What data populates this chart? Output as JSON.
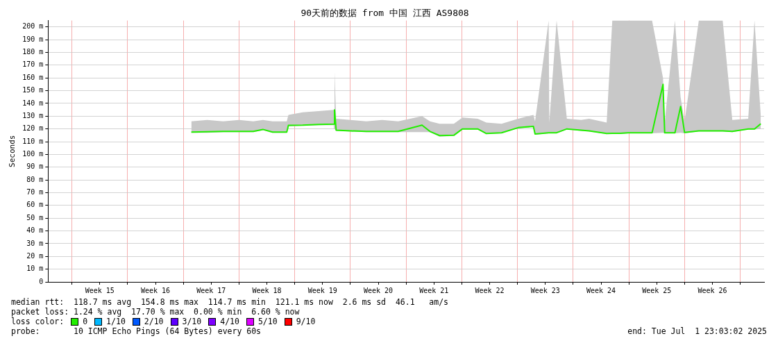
{
  "chart_data": {
    "type": "line",
    "title": "90天前的数据 from 中国 江西 AS9808",
    "ylabel": "Seconds",
    "xlim": [
      "2025-04-04",
      "2025-07-03"
    ],
    "xticks": [
      {
        "value": "2025-04-07",
        "label": null
      },
      {
        "value": "2025-04-10T12:00",
        "label": "Week 15"
      },
      {
        "value": "2025-04-14",
        "label": null
      },
      {
        "value": "2025-04-17T12:00",
        "label": "Week 16"
      },
      {
        "value": "2025-04-21",
        "label": null
      },
      {
        "value": "2025-04-24T12:00",
        "label": "Week 17"
      },
      {
        "value": "2025-04-28",
        "label": null
      },
      {
        "value": "2025-05-01T12:00",
        "label": "Week 18"
      },
      {
        "value": "2025-05-05",
        "label": null
      },
      {
        "value": "2025-05-08T12:00",
        "label": "Week 19"
      },
      {
        "value": "2025-05-12",
        "label": null
      },
      {
        "value": "2025-05-15T12:00",
        "label": "Week 20"
      },
      {
        "value": "2025-05-19",
        "label": null
      },
      {
        "value": "2025-05-22T12:00",
        "label": "Week 21"
      },
      {
        "value": "2025-05-26",
        "label": null
      },
      {
        "value": "2025-05-29T12:00",
        "label": "Week 22"
      },
      {
        "value": "2025-06-02",
        "label": null
      },
      {
        "value": "2025-06-05T12:00",
        "label": "Week 23"
      },
      {
        "value": "2025-06-09",
        "label": null
      },
      {
        "value": "2025-06-12T12:00",
        "label": "Week 24"
      },
      {
        "value": "2025-06-16",
        "label": null
      },
      {
        "value": "2025-06-19T12:00",
        "label": "Week 25"
      },
      {
        "value": "2025-06-23",
        "label": null
      },
      {
        "value": "2025-06-26T12:00",
        "label": "Week 26"
      },
      {
        "value": "2025-06-30",
        "label": null
      }
    ],
    "ylim": [
      0,
      205
    ],
    "yticks": [
      0,
      {
        "value": 10,
        "label": "10 m"
      },
      {
        "value": 20,
        "label": "20 m"
      },
      {
        "value": 30,
        "label": "30 m"
      },
      {
        "value": 40,
        "label": "40 m"
      },
      {
        "value": 50,
        "label": "50 m"
      },
      {
        "value": 60,
        "label": "60 m"
      },
      {
        "value": 70,
        "label": "70 m"
      },
      {
        "value": 80,
        "label": "80 m"
      },
      {
        "value": 90,
        "label": "90 m"
      },
      {
        "value": 100,
        "label": "100 m"
      },
      {
        "value": 110,
        "label": "110 m"
      },
      {
        "value": 120,
        "label": "120 m"
      },
      {
        "value": 130,
        "label": "130 m"
      },
      {
        "value": 140,
        "label": "140 m"
      },
      {
        "value": 150,
        "label": "150 m"
      },
      {
        "value": 160,
        "label": "160 m"
      },
      {
        "value": 170,
        "label": "170 m"
      },
      {
        "value": 180,
        "label": "180 m"
      },
      {
        "value": 190,
        "label": "190 m"
      },
      {
        "value": 200,
        "label": "200 m"
      }
    ],
    "grid": true,
    "legend": "bottom left",
    "legend_title": "loss color:",
    "marker": "none",
    "line_style": "solid",
    "series": [
      {
        "name": "0",
        "color": "#22ee00",
        "x": [
          "2025-04-22",
          "2025-04-24",
          "2025-04-26",
          "2025-04-28",
          "2025-04-29T19:00",
          "2025-05-01",
          "2025-05-02T05:00",
          "2025-05-04",
          "2025-05-04T05:00",
          "2025-05-06",
          "2025-05-08",
          "2025-05-09T22:00",
          "2025-05-10",
          "2025-05-10T05:00",
          "2025-05-12",
          "2025-05-14",
          "2025-05-16",
          "2025-05-18",
          "2025-05-21",
          "2025-05-22",
          "2025-05-23T05:00",
          "2025-05-25",
          "2025-05-26T02:00",
          "2025-05-28",
          "2025-05-29T02:00",
          "2025-05-31",
          "2025-06-02T02:00",
          "2025-06-04",
          "2025-06-04T05:00",
          "2025-06-05T22:00",
          "2025-06-06",
          "2025-06-06T22:00",
          "2025-06-08T05:00",
          "2025-06-10",
          "2025-06-11",
          "2025-06-13T05:00",
          "2025-06-13T22:00",
          "2025-06-14T22:00",
          "2025-06-15T22:00",
          "2025-06-17",
          "2025-06-17T22:00",
          "2025-06-18T22:00",
          "2025-06-20T07:00",
          "2025-06-20T12:00",
          "2025-06-21T19:00",
          "2025-06-22T12:00",
          "2025-06-23",
          "2025-06-24T19:00",
          "2025-06-25T19:00",
          "2025-06-26T19:00",
          "2025-06-27T19:00",
          "2025-06-29",
          "2025-07-01",
          "2025-07-01T19:00",
          "2025-07-02T14:00"
        ],
        "values": [
          117.5,
          117.8,
          118,
          118,
          118,
          119.6,
          117.5,
          117.5,
          122.8,
          123,
          123.5,
          123.8,
          135,
          119,
          118.5,
          118,
          118,
          118,
          123,
          118,
          114.8,
          115,
          120,
          120,
          116.4,
          117,
          121,
          122,
          116,
          117,
          117,
          117,
          120,
          119,
          118.5,
          116.4,
          116.5,
          116.5,
          117,
          117,
          117,
          117,
          155,
          117,
          117,
          137.6,
          117.2,
          118.5,
          118.5,
          118.5,
          118.5,
          118,
          120,
          120,
          124
        ],
        "lower": [
          117,
          117,
          117.5,
          117.5,
          117.5,
          119,
          117,
          117,
          122,
          122.5,
          123,
          123,
          120,
          118.5,
          118,
          117.5,
          117.5,
          117.5,
          117.5,
          117.5,
          114,
          114.5,
          119.5,
          119.5,
          116,
          116.5,
          120.5,
          121.5,
          115.5,
          116.5,
          116.5,
          116.5,
          119.5,
          118.5,
          118,
          116,
          116,
          116,
          116.5,
          116.5,
          116.5,
          116.5,
          117,
          116.5,
          116.5,
          117,
          116.5,
          118,
          118,
          118,
          118,
          117.5,
          119.5,
          119.5,
          120
        ],
        "upper": [
          126,
          127,
          126,
          127,
          126,
          127,
          126,
          126,
          131,
          133,
          134,
          135,
          165,
          128,
          127,
          126,
          127,
          126,
          130,
          126,
          124,
          124,
          129,
          128,
          125,
          124,
          128,
          131,
          126,
          205,
          125,
          205,
          128,
          127,
          128,
          125,
          205,
          205,
          205,
          205,
          205,
          205,
          160,
          125,
          205,
          145,
          126,
          205,
          205,
          205,
          205,
          127,
          128,
          205,
          130
        ]
      },
      {
        "name": "1/10",
        "color": "#00b8ff"
      },
      {
        "name": "2/10",
        "color": "#0059ff"
      },
      {
        "name": "3/10",
        "color": "#5e00ff"
      },
      {
        "name": "4/10",
        "color": "#7e00ff"
      },
      {
        "name": "5/10",
        "color": "#dd00ff"
      },
      {
        "name": "9/10",
        "color": "#ff0000"
      }
    ],
    "annotations": [
      "median rtt:  118.7 ms avg  154.8 ms max  114.7 ms min  121.1 ms now  2.6 ms sd  46.1   am/s",
      "packet loss: 1.24 % avg  17.70 % max  0.00 % min  6.60 % now",
      "probe:       10 ICMP Echo Pings (64 Bytes) every 60s",
      "end: Tue Jul  1 23:03:02 2025"
    ]
  }
}
